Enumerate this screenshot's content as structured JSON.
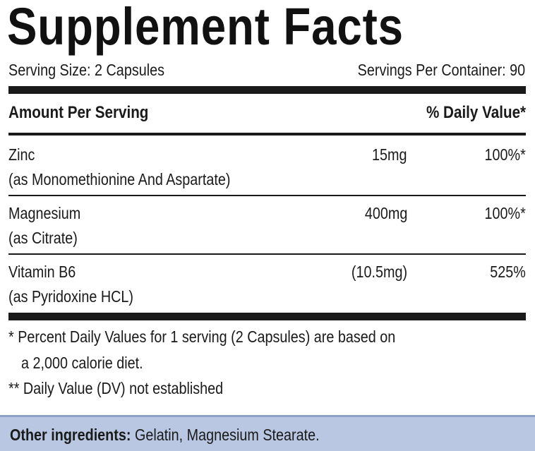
{
  "title": "Supplement Facts",
  "serving": {
    "size": "Serving Size: 2 Capsules",
    "per_container": "Servings Per Container: 90"
  },
  "header": {
    "amount_per_serving": "Amount Per Serving",
    "daily_value": "% Daily Value*"
  },
  "nutrients": [
    {
      "name": "Zinc",
      "source": "(as Monomethionine And Aspartate)",
      "amount": "15mg",
      "dv": "100%*"
    },
    {
      "name": "Magnesium",
      "source": "(as Citrate)",
      "amount": "400mg",
      "dv": "100%*"
    },
    {
      "name": "Vitamin B6",
      "source": "(as Pyridoxine HCL)",
      "amount": "(10.5mg)",
      "dv": "525%"
    }
  ],
  "footnotes": {
    "percent_line1": "* Percent Daily Values for 1 serving (2 Capsules) are based on",
    "percent_line2": "a 2,000 calorie diet.",
    "not_established": "** Daily Value (DV) not established"
  },
  "other_ingredients": {
    "label": "Other ingredients:",
    "value": " Gelatin, Magnesium Stearate."
  },
  "colors": {
    "text": "#1a1a1a",
    "band": "#b9c7e3"
  }
}
